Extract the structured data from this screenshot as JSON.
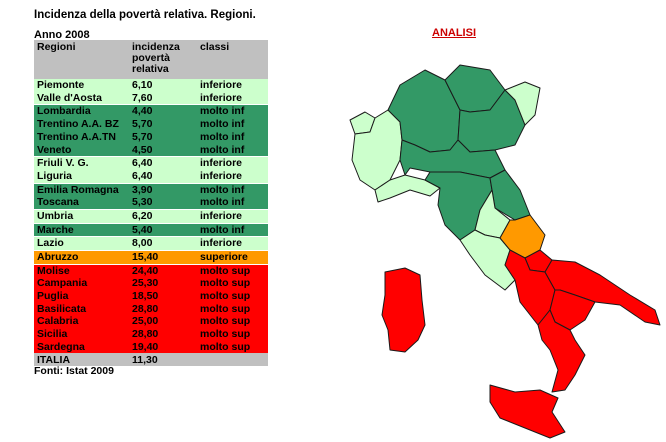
{
  "title": "Incidenza della povertà relativa. Regioni.",
  "year": "Anno 2008",
  "map_link": "ANALISI",
  "source": "Fonti: Istat 2009",
  "colors": {
    "header": "#c0c0c0",
    "inferiore": "#ccffcc",
    "molto_inf": "#339966",
    "superiore": "#ff9900",
    "molto_sup": "#ff0000",
    "total": "#c0c0c0"
  },
  "table": {
    "headers": [
      "Regioni",
      "incidenza povertà relativa",
      "classi"
    ],
    "rows": [
      {
        "region": "Piemonte",
        "value": "6,10",
        "class": "inferiore",
        "color": "#ccffcc"
      },
      {
        "region": "Valle d'Aosta",
        "value": "7,60",
        "class": "inferiore",
        "color": "#ccffcc"
      },
      {
        "region": "Lombardia",
        "value": "4,40",
        "class": "molto inf",
        "color": "#339966"
      },
      {
        "region": "Trentino A.A. BZ",
        "value": "5,70",
        "class": "molto inf",
        "color": "#339966"
      },
      {
        "region": "Trentino A.A.TN",
        "value": "5,70",
        "class": "molto inf",
        "color": "#339966"
      },
      {
        "region": "Veneto",
        "value": "4,50",
        "class": "molto inf",
        "color": "#339966"
      },
      {
        "region": "Friuli V. G.",
        "value": "6,40",
        "class": "inferiore",
        "color": "#ccffcc"
      },
      {
        "region": "Liguria",
        "value": "6,40",
        "class": "inferiore",
        "color": "#ccffcc"
      },
      {
        "region": "Emilia Romagna",
        "value": "3,90",
        "class": "molto inf",
        "color": "#339966"
      },
      {
        "region": "Toscana",
        "value": "5,30",
        "class": "molto inf",
        "color": "#339966"
      },
      {
        "region": "Umbria",
        "value": "6,20",
        "class": "inferiore",
        "color": "#ccffcc"
      },
      {
        "region": "Marche",
        "value": "5,40",
        "class": "molto inf",
        "color": "#339966"
      },
      {
        "region": "Lazio",
        "value": "8,00",
        "class": "inferiore",
        "color": "#ccffcc"
      },
      {
        "region": "Abruzzo",
        "value": "15,40",
        "class": "superiore",
        "color": "#ff9900"
      },
      {
        "region": "Molise",
        "value": "24,40",
        "class": "molto sup",
        "color": "#ff0000"
      },
      {
        "region": "Campania",
        "value": "25,30",
        "class": "molto sup",
        "color": "#ff0000"
      },
      {
        "region": "Puglia",
        "value": "18,50",
        "class": "molto sup",
        "color": "#ff0000"
      },
      {
        "region": "Basilicata",
        "value": "28,80",
        "class": "molto sup",
        "color": "#ff0000"
      },
      {
        "region": "Calabria",
        "value": "25,00",
        "class": "molto sup",
        "color": "#ff0000"
      },
      {
        "region": "Sicilia",
        "value": "28,80",
        "class": "molto sup",
        "color": "#ff0000"
      },
      {
        "region": "Sardegna",
        "value": "19,40",
        "class": "molto sup",
        "color": "#ff0000"
      }
    ],
    "total": {
      "region": "ITALIA",
      "value": "11,30",
      "class": ""
    }
  },
  "map_regions": [
    {
      "name": "valle-d-aosta",
      "color": "#ccffcc"
    },
    {
      "name": "piemonte",
      "color": "#ccffcc"
    },
    {
      "name": "liguria",
      "color": "#ccffcc"
    },
    {
      "name": "lombardia",
      "color": "#339966"
    },
    {
      "name": "trentino",
      "color": "#339966"
    },
    {
      "name": "veneto",
      "color": "#339966"
    },
    {
      "name": "friuli",
      "color": "#ccffcc"
    },
    {
      "name": "emilia-romagna",
      "color": "#339966"
    },
    {
      "name": "toscana",
      "color": "#339966"
    },
    {
      "name": "marche",
      "color": "#339966"
    },
    {
      "name": "umbria",
      "color": "#ccffcc"
    },
    {
      "name": "lazio",
      "color": "#ccffcc"
    },
    {
      "name": "abruzzo",
      "color": "#ff9900"
    },
    {
      "name": "molise",
      "color": "#ff0000"
    },
    {
      "name": "campania",
      "color": "#ff0000"
    },
    {
      "name": "puglia",
      "color": "#ff0000"
    },
    {
      "name": "basilicata",
      "color": "#ff0000"
    },
    {
      "name": "calabria",
      "color": "#ff0000"
    },
    {
      "name": "sicilia",
      "color": "#ff0000"
    },
    {
      "name": "sardegna",
      "color": "#ff0000"
    }
  ]
}
